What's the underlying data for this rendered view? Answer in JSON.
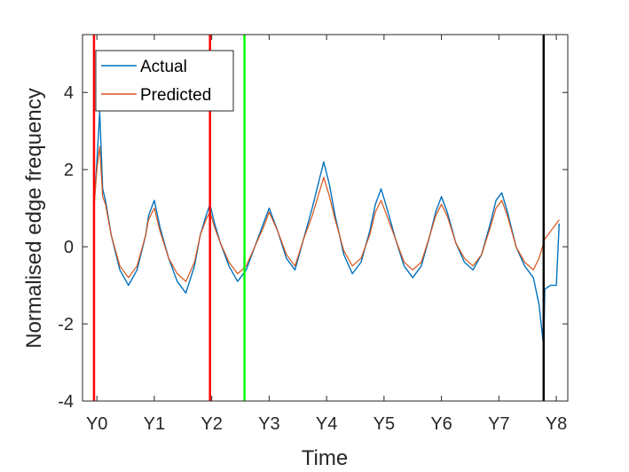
{
  "chart_data": {
    "type": "line",
    "title": "",
    "xlabel": "Time",
    "ylabel": "Normalised edge frequency",
    "xlim": [
      -0.25,
      8.2
    ],
    "ylim": [
      -4,
      5.5
    ],
    "x_ticks": [
      {
        "value": 0,
        "label": "Y0"
      },
      {
        "value": 1,
        "label": "Y1"
      },
      {
        "value": 2,
        "label": "Y2"
      },
      {
        "value": 3,
        "label": "Y3"
      },
      {
        "value": 4,
        "label": "Y4"
      },
      {
        "value": 5,
        "label": "Y5"
      },
      {
        "value": 6,
        "label": "Y6"
      },
      {
        "value": 7,
        "label": "Y7"
      },
      {
        "value": 8,
        "label": "Y8"
      }
    ],
    "y_ticks": [
      {
        "value": -4,
        "label": "-4"
      },
      {
        "value": -2,
        "label": "-2"
      },
      {
        "value": 0,
        "label": "0"
      },
      {
        "value": 2,
        "label": "2"
      },
      {
        "value": 4,
        "label": "4"
      }
    ],
    "legend": {
      "position": "top-left",
      "entries": [
        {
          "name": "Actual",
          "color": "#0072BD"
        },
        {
          "name": "Predicted",
          "color": "#D95319"
        }
      ]
    },
    "vertical_lines": [
      {
        "x": -0.05,
        "color": "#FF0000"
      },
      {
        "x": 1.97,
        "color": "#FF0000"
      },
      {
        "x": 2.57,
        "color": "#00FF00"
      },
      {
        "x": 7.78,
        "color": "#000000"
      }
    ],
    "series": [
      {
        "name": "Actual",
        "color": "#0072BD",
        "x": [
          -0.05,
          0.0,
          0.05,
          0.1,
          0.15,
          0.25,
          0.4,
          0.55,
          0.7,
          0.85,
          0.9,
          1.0,
          1.1,
          1.25,
          1.4,
          1.55,
          1.7,
          1.8,
          1.9,
          1.97,
          2.05,
          2.15,
          2.3,
          2.45,
          2.6,
          2.75,
          2.9,
          3.0,
          3.15,
          3.3,
          3.45,
          3.6,
          3.75,
          3.85,
          3.95,
          4.05,
          4.15,
          4.3,
          4.45,
          4.6,
          4.75,
          4.85,
          4.95,
          5.05,
          5.2,
          5.35,
          5.5,
          5.65,
          5.8,
          5.9,
          6.0,
          6.1,
          6.25,
          6.4,
          6.55,
          6.7,
          6.85,
          6.95,
          7.05,
          7.15,
          7.3,
          7.45,
          7.6,
          7.7,
          7.78,
          7.8,
          7.9,
          8.0,
          8.05
        ],
        "y": [
          1.0,
          2.2,
          3.5,
          1.5,
          1.2,
          0.3,
          -0.6,
          -1.0,
          -0.6,
          0.3,
          0.8,
          1.2,
          0.5,
          -0.3,
          -0.9,
          -1.2,
          -0.5,
          0.3,
          0.8,
          1.1,
          0.6,
          0.1,
          -0.5,
          -0.9,
          -0.6,
          0.0,
          0.6,
          1.0,
          0.4,
          -0.3,
          -0.6,
          0.2,
          1.0,
          1.6,
          2.2,
          1.6,
          0.8,
          -0.2,
          -0.7,
          -0.4,
          0.4,
          1.1,
          1.5,
          1.0,
          0.2,
          -0.5,
          -0.8,
          -0.5,
          0.3,
          0.9,
          1.3,
          0.9,
          0.1,
          -0.4,
          -0.6,
          -0.2,
          0.6,
          1.2,
          1.4,
          0.9,
          0.0,
          -0.5,
          -0.8,
          -1.5,
          -2.6,
          -1.1,
          -1.0,
          -1.0,
          0.6
        ]
      },
      {
        "name": "Predicted",
        "color": "#D95319",
        "x": [
          -0.05,
          0.0,
          0.05,
          0.1,
          0.15,
          0.25,
          0.4,
          0.55,
          0.7,
          0.85,
          0.9,
          1.0,
          1.1,
          1.25,
          1.4,
          1.55,
          1.7,
          1.8,
          1.9,
          1.97,
          2.05,
          2.15,
          2.3,
          2.45,
          2.6,
          2.75,
          2.9,
          3.0,
          3.15,
          3.3,
          3.45,
          3.6,
          3.75,
          3.85,
          3.95,
          4.05,
          4.15,
          4.3,
          4.45,
          4.6,
          4.75,
          4.85,
          4.95,
          5.05,
          5.2,
          5.35,
          5.5,
          5.65,
          5.8,
          5.9,
          6.0,
          6.1,
          6.25,
          6.4,
          6.55,
          6.7,
          6.85,
          6.95,
          7.05,
          7.15,
          7.3,
          7.45,
          7.6,
          7.7,
          7.78,
          7.8,
          7.9,
          8.0,
          8.05
        ],
        "y": [
          1.0,
          2.0,
          2.6,
          1.3,
          1.1,
          0.3,
          -0.5,
          -0.8,
          -0.5,
          0.3,
          0.7,
          1.0,
          0.4,
          -0.3,
          -0.7,
          -0.9,
          -0.4,
          0.3,
          0.7,
          0.9,
          0.5,
          0.1,
          -0.4,
          -0.7,
          -0.5,
          0.0,
          0.5,
          0.9,
          0.4,
          -0.2,
          -0.5,
          0.2,
          0.8,
          1.3,
          1.8,
          1.3,
          0.7,
          -0.1,
          -0.5,
          -0.3,
          0.3,
          0.9,
          1.2,
          0.8,
          0.2,
          -0.4,
          -0.6,
          -0.4,
          0.3,
          0.8,
          1.1,
          0.8,
          0.1,
          -0.3,
          -0.5,
          -0.2,
          0.5,
          1.0,
          1.2,
          0.8,
          0.0,
          -0.4,
          -0.6,
          -0.3,
          0.1,
          0.2,
          0.4,
          0.6,
          0.7
        ]
      }
    ]
  }
}
